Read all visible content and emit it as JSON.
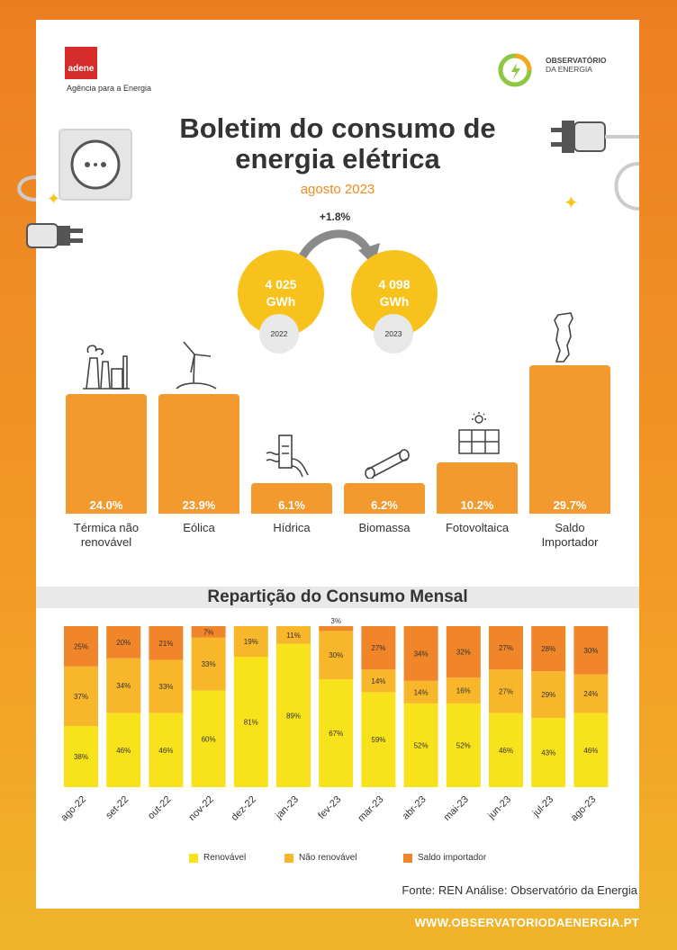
{
  "header": {
    "adene_logo": "adene",
    "adene_subtitle": "Agência para a Energia",
    "observatorio_line1": "OBSERVATÓRIO",
    "observatorio_line2": "DA ENERGIA"
  },
  "title_line1": "Boletim do consumo de",
  "title_line2": "energia elétrica",
  "subtitle": "agosto 2023",
  "comparison": {
    "delta": "+1.8%",
    "value_2022_line1": "4 025",
    "value_2022_line2": "GWh",
    "year_2022": "2022",
    "value_2023_line1": "4 098",
    "value_2023_line2": "GWh",
    "year_2023": "2023"
  },
  "sources": [
    {
      "label": "Térmica não renovável",
      "pct_label": "24.0%",
      "value": 24.0,
      "icon": "thermal-plant-icon"
    },
    {
      "label": "Eólica",
      "pct_label": "23.9%",
      "value": 23.9,
      "icon": "wind-turbine-icon"
    },
    {
      "label": "Hídrica",
      "pct_label": "6.1%",
      "value": 6.1,
      "icon": "hydro-dam-icon"
    },
    {
      "label": "Biomassa",
      "pct_label": "6.2%",
      "value": 6.2,
      "icon": "log-icon"
    },
    {
      "label": "Fotovoltaica",
      "pct_label": "10.2%",
      "value": 10.2,
      "icon": "solar-panel-icon"
    },
    {
      "label": "Saldo Importador",
      "pct_label": "29.7%",
      "value": 29.7,
      "icon": "portugal-map-icon"
    }
  ],
  "section_title": "Repartição do Consumo Mensal",
  "chart_data": {
    "type": "bar",
    "stacked": true,
    "categories": [
      "ago-22",
      "set-22",
      "out-22",
      "nov-22",
      "dez-22",
      "jan-23",
      "fev-23",
      "mar-23",
      "abr-23",
      "mai-23",
      "jun-23",
      "jul-23",
      "ago-23"
    ],
    "series": [
      {
        "name": "Renovável",
        "color": "#f8e21c",
        "values": [
          38,
          46,
          46,
          60,
          81,
          89,
          67,
          59,
          52,
          52,
          46,
          43,
          46
        ]
      },
      {
        "name": "Não renovável",
        "color": "#f8b62a",
        "values": [
          37,
          34,
          33,
          33,
          19,
          11,
          30,
          14,
          14,
          16,
          27,
          29,
          24
        ]
      },
      {
        "name": "Saldo importador",
        "color": "#f0852a",
        "values": [
          25,
          20,
          21,
          7,
          0,
          0,
          3,
          27,
          34,
          32,
          27,
          28,
          30
        ]
      }
    ],
    "ylim": [
      0,
      100
    ],
    "legend_position": "bottom"
  },
  "footer": {
    "fonte": "Fonte: REN   Análise: Observatório da Energia",
    "url": "WWW.OBSERVATORIODAENERGIA.PT"
  },
  "colors": {
    "accent_orange": "#f39a2e",
    "circle_yellow": "#f8c21c"
  }
}
